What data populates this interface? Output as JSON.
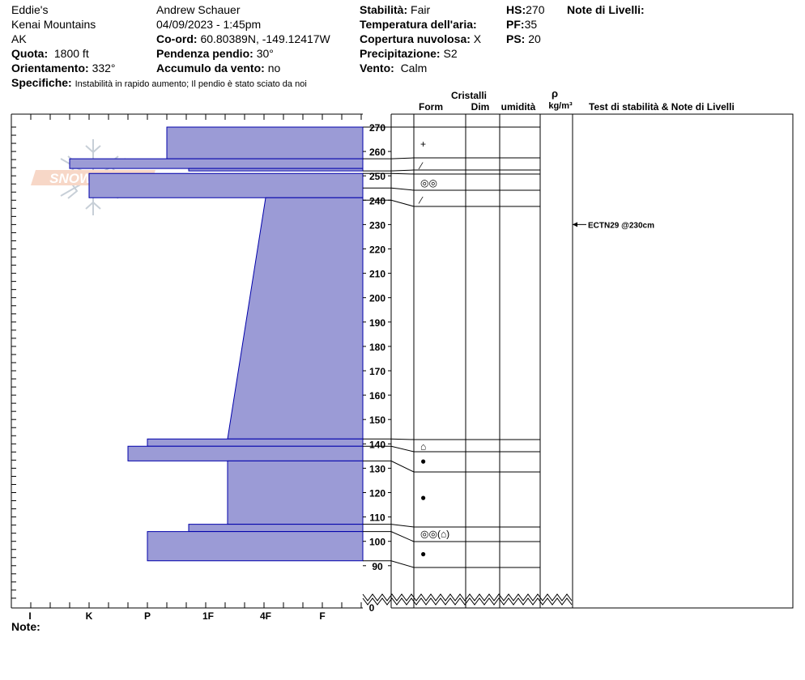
{
  "header": {
    "col1": [
      "Eddie's",
      "Kenai Mountains",
      "AK"
    ],
    "quota_label": "Quota:",
    "quota_value": "1800 ft",
    "orient_label": "Orientamento:",
    "orient_value": "332°",
    "spec_label": "Specifiche:",
    "spec_value": "Instabilità in rapido aumento; Il pendio è stato sciato da noi",
    "observer": "Andrew Schauer",
    "datetime": "04/09/2023 - 1:45pm",
    "coord_label": "Co-ord:",
    "coord_value": "60.80389N, -149.12417W",
    "slope_label": "Pendenza pendio:",
    "slope_value": "30°",
    "wind_load_label": "Accumulo da vento:",
    "wind_load_value": "no",
    "stability_label": "Stabilità:",
    "stability_value": "Fair",
    "air_temp_label": "Temperatura dell'aria:",
    "air_temp_value": "",
    "cloud_label": "Copertura nuvolosa:",
    "cloud_value": "X",
    "precip_label": "Precipitazione:",
    "precip_value": "S2",
    "wind_label": "Vento:",
    "wind_value": "Calm",
    "hs_label": "HS:",
    "hs_value": "270",
    "pf_label": "PF:",
    "pf_value": "35",
    "ps_label": "PS:",
    "ps_value": "20",
    "notes_label": "Note di Livelli:"
  },
  "footer": {
    "note_label": "Note:"
  },
  "columns": {
    "crystals": "Cristalli",
    "form": "Form",
    "size": "Dim",
    "moisture": "umidità",
    "rho": "ρ",
    "density_unit": "kg/m³",
    "tests": "Test di stabilità & Note di Livelli"
  },
  "logo_text": "SNOW PILOT",
  "colors": {
    "layer_fill": "#9b9bd6",
    "layer_stroke": "#0000aa"
  },
  "chart_data": {
    "type": "bar",
    "title": "",
    "ylim": [
      0,
      270
    ],
    "y_ticks": [
      90,
      100,
      110,
      120,
      130,
      140,
      150,
      160,
      170,
      180,
      190,
      200,
      210,
      220,
      230,
      240,
      250,
      260,
      270
    ],
    "y_zero_label": "0",
    "hardness_ticks": [
      "I",
      "K",
      "P",
      "1F",
      "4F",
      "F"
    ],
    "hardness_layers": [
      {
        "top": 270,
        "bottom": 257,
        "hardness_top": "P-",
        "hardness_bottom": "P-"
      },
      {
        "top": 257,
        "bottom": 253,
        "hardness_top": "K+",
        "hardness_bottom": "K+"
      },
      {
        "top": 253,
        "bottom": 252,
        "hardness_top": "1F+",
        "hardness_bottom": "1F+"
      },
      {
        "top": 251,
        "bottom": 241,
        "hardness_top": "K",
        "hardness_bottom": "K"
      },
      {
        "top": 241,
        "bottom": 142,
        "hardness_top": "4F",
        "hardness_bottom": "1F-"
      },
      {
        "top": 142,
        "bottom": 139,
        "hardness_top": "P",
        "hardness_bottom": "P"
      },
      {
        "top": 139,
        "bottom": 133,
        "hardness_top": "P+",
        "hardness_bottom": "P+"
      },
      {
        "top": 133,
        "bottom": 107,
        "hardness_top": "1F-",
        "hardness_bottom": "1F-"
      },
      {
        "top": 107,
        "bottom": 104,
        "hardness_top": "1F+",
        "hardness_bottom": "1F+"
      },
      {
        "top": 104,
        "bottom": 92,
        "hardness_top": "P",
        "hardness_bottom": "P"
      }
    ],
    "layer_boundaries": [
      270,
      257,
      252,
      251,
      245,
      240,
      142,
      139,
      133,
      107,
      104,
      92
    ],
    "grain_symbols": [
      {
        "cm": 263,
        "symbol": "+"
      },
      {
        "cm": 254,
        "symbol": "⁄"
      },
      {
        "cm": 247,
        "symbol": "◎◎"
      },
      {
        "cm": 240,
        "symbol": "⁄"
      },
      {
        "cm": 139,
        "symbol": "⌂"
      },
      {
        "cm": 133,
        "symbol": "●"
      },
      {
        "cm": 118,
        "symbol": "●"
      },
      {
        "cm": 103,
        "symbol": "◎◎(⌂)"
      },
      {
        "cm": 95,
        "symbol": "●"
      }
    ],
    "tests": [
      {
        "cm": 230,
        "label": "ECTN29 @230cm"
      }
    ]
  }
}
